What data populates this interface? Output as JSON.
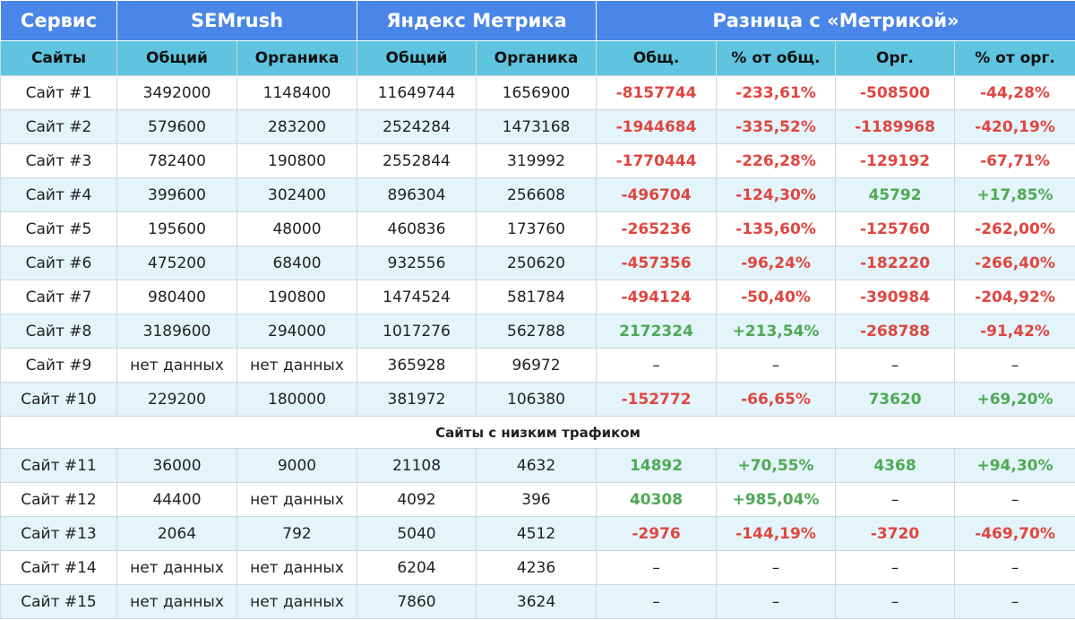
{
  "table": {
    "groups": [
      "Сервис",
      "SEMrush",
      "Яндекс Метрика",
      "Разница с «Метрикой»"
    ],
    "columns": [
      "Сайты",
      "Общий",
      "Органика",
      "Общий",
      "Органика",
      "Общ.",
      "% от общ.",
      "Орг.",
      "% от орг."
    ],
    "rows": [
      [
        "Сайт #1",
        "3492000",
        "1148400",
        "11649744",
        "1656900",
        "-8157744",
        "-233,61%",
        "-508500",
        "-44,28%"
      ],
      [
        "Сайт #2",
        "579600",
        "283200",
        "2524284",
        "1473168",
        "-1944684",
        "-335,52%",
        "-1189968",
        "-420,19%"
      ],
      [
        "Сайт #3",
        "782400",
        "190800",
        "2552844",
        "319992",
        "-1770444",
        "-226,28%",
        "-129192",
        "-67,71%"
      ],
      [
        "Сайт #4",
        "399600",
        "302400",
        "896304",
        "256608",
        "-496704",
        "-124,30%",
        "45792",
        "+17,85%"
      ],
      [
        "Сайт #5",
        "195600",
        "48000",
        "460836",
        "173760",
        "-265236",
        "-135,60%",
        "-125760",
        "-262,00%"
      ],
      [
        "Сайт #6",
        "475200",
        "68400",
        "932556",
        "250620",
        "-457356",
        "-96,24%",
        "-182220",
        "-266,40%"
      ],
      [
        "Сайт #7",
        "980400",
        "190800",
        "1474524",
        "581784",
        "-494124",
        "-50,40%",
        "-390984",
        "-204,92%"
      ],
      [
        "Сайт #8",
        "3189600",
        "294000",
        "1017276",
        "562788",
        "2172324",
        "+213,54%",
        "-268788",
        "-91,42%"
      ],
      [
        "Сайт #9",
        "нет данных",
        "нет данных",
        "365928",
        "96972",
        "–",
        "–",
        "–",
        "–"
      ],
      [
        "Сайт #10",
        "229200",
        "180000",
        "381972",
        "106380",
        "-152772",
        "-66,65%",
        "73620",
        "+69,20%"
      ]
    ],
    "low_traffic": {
      "title": "Сайты с низким трафиком",
      "rows": [
        [
          "Сайт #11",
          "36000",
          "9000",
          "21108",
          "4632",
          "14892",
          "+70,55%",
          "4368",
          "+94,30%"
        ],
        [
          "Сайт #12",
          "44400",
          "нет данных",
          "4092",
          "396",
          "40308",
          "+985,04%",
          "–",
          "–"
        ],
        [
          "Сайт #13",
          "2064",
          "792",
          "5040",
          "4512",
          "-2976",
          "-144,19%",
          "-3720",
          "-469,70%"
        ],
        [
          "Сайт #14",
          "нет данных",
          "нет данных",
          "6204",
          "4236",
          "–",
          "–",
          "–",
          "–"
        ],
        [
          "Сайт #15",
          "нет данных",
          "нет данных",
          "7860",
          "3624",
          "–",
          "–",
          "–",
          "–"
        ]
      ]
    }
  }
}
